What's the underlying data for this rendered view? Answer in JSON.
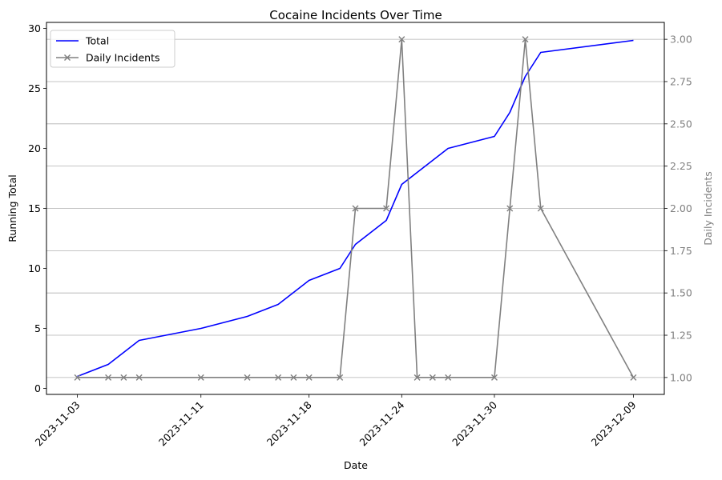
{
  "chart_data": {
    "type": "line",
    "title": "Cocaine Incidents Over Time",
    "xlabel": "Date",
    "ylabel_left": "Running Total",
    "ylabel_right": "Daily Incidents",
    "x_tick_labels": [
      "2023-11-03",
      "2023-11-11",
      "2023-11-18",
      "2023-11-24",
      "2023-11-30",
      "2023-12-09"
    ],
    "xlim": [
      "2023-11-01",
      "2023-12-11"
    ],
    "ylim_left": [
      -0.5,
      30.5
    ],
    "ylim_right": [
      0.9,
      3.1
    ],
    "y_ticks_left": [
      "0",
      "5",
      "10",
      "15",
      "20",
      "25",
      "30"
    ],
    "y_ticks_right": [
      "1.00",
      "1.25",
      "1.50",
      "1.75",
      "2.00",
      "2.25",
      "2.50",
      "2.75",
      "3.00"
    ],
    "grid": "horizontal lines at right-axis ticks",
    "legend_placement": "top-left",
    "series": [
      {
        "name": "Total",
        "axis": "left",
        "color": "#0000ff",
        "marker": "none",
        "x": [
          "2023-11-03",
          "2023-11-05",
          "2023-11-07",
          "2023-11-11",
          "2023-11-14",
          "2023-11-16",
          "2023-11-18",
          "2023-11-20",
          "2023-11-21",
          "2023-11-23",
          "2023-11-24",
          "2023-11-25",
          "2023-11-26",
          "2023-11-27",
          "2023-11-30",
          "2023-12-01",
          "2023-12-02",
          "2023-12-03",
          "2023-12-09"
        ],
        "values": [
          1,
          2,
          4,
          5,
          6,
          7,
          9,
          10,
          12,
          14,
          17,
          18,
          19,
          20,
          21,
          23,
          26,
          28,
          29
        ]
      },
      {
        "name": "Daily Incidents",
        "axis": "right",
        "color": "#808080",
        "marker": "x",
        "x": [
          "2023-11-03",
          "2023-11-05",
          "2023-11-06",
          "2023-11-07",
          "2023-11-11",
          "2023-11-14",
          "2023-11-16",
          "2023-11-17",
          "2023-11-18",
          "2023-11-20",
          "2023-11-21",
          "2023-11-23",
          "2023-11-24",
          "2023-11-25",
          "2023-11-26",
          "2023-11-27",
          "2023-11-30",
          "2023-12-01",
          "2023-12-02",
          "2023-12-03",
          "2023-12-09"
        ],
        "values": [
          1,
          1,
          1,
          1,
          1,
          1,
          1,
          1,
          1,
          1,
          2,
          2,
          3,
          1,
          1,
          1,
          1,
          2,
          3,
          2,
          1
        ]
      }
    ]
  }
}
